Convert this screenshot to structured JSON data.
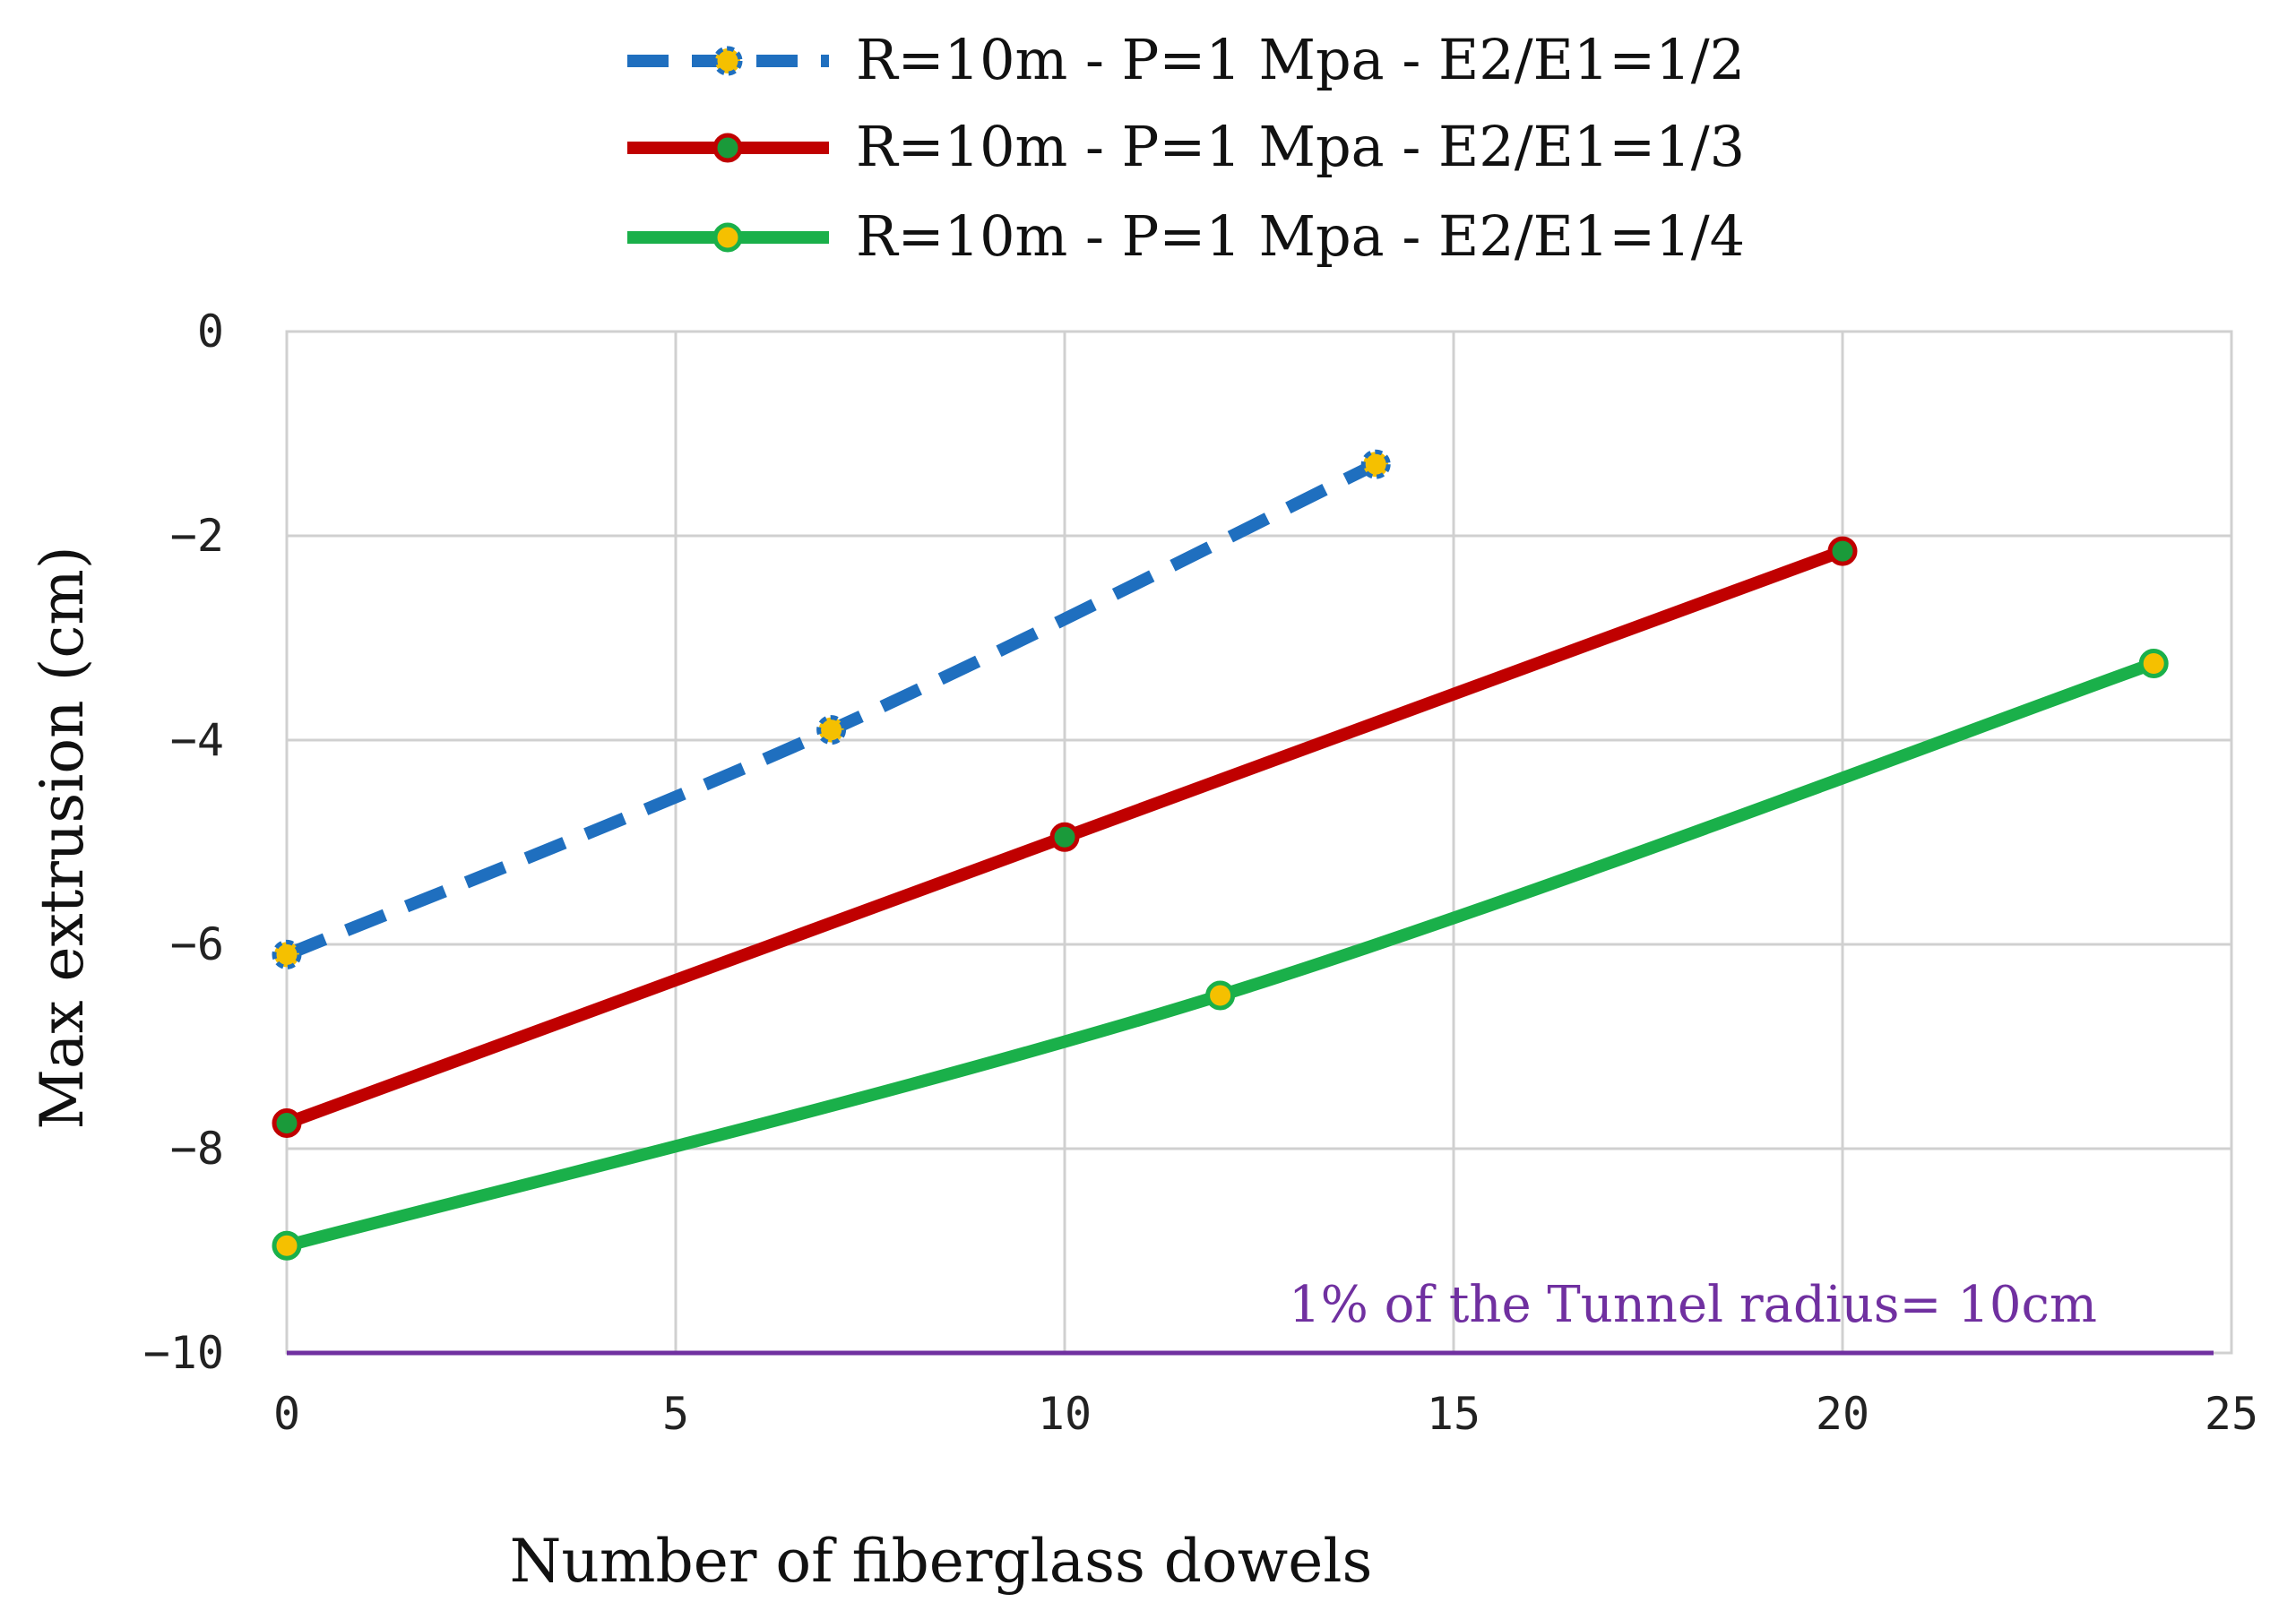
{
  "chart_data": {
    "type": "line",
    "xlabel": "Number of fiberglass dowels",
    "ylabel": "Max extrusion (cm)",
    "xlim": [
      0,
      25
    ],
    "ylim": [
      -10,
      0
    ],
    "x_ticks": [
      "0",
      "5",
      "10",
      "15",
      "20",
      "25"
    ],
    "y_ticks": [
      "0",
      "−2",
      "−4",
      "−6",
      "−8",
      "−10"
    ],
    "grid": true,
    "legend_position": "top",
    "series": [
      {
        "name": "R=10m - P=1 Mpa - E2/E1=1/2",
        "x": [
          0,
          7,
          14
        ],
        "y": [
          -6.1,
          -3.9,
          -1.3
        ],
        "line_color": "#1f6fbf",
        "line_style": "dashed",
        "marker_fill": "#f5c000",
        "marker_edge": "#1f6fbf"
      },
      {
        "name": "R=10m - P=1 Mpa - E2/E1=1/3",
        "x": [
          0,
          10,
          20
        ],
        "y": [
          -7.75,
          -4.95,
          -2.15
        ],
        "line_color": "#c00000",
        "line_style": "solid",
        "marker_fill": "#1a9a3a",
        "marker_edge": "#c00000"
      },
      {
        "name": "R=10m - P=1 Mpa - E2/E1=1/4",
        "x": [
          0,
          12,
          24
        ],
        "y": [
          -8.95,
          -6.5,
          -3.25
        ],
        "line_color": "#1ab04a",
        "line_style": "solid",
        "marker_fill": "#f5c000",
        "marker_edge": "#1ab04a"
      }
    ],
    "reference_line": {
      "y": -10,
      "label": "1% of the Tunnel radius= 10cm",
      "color": "#7030a0"
    }
  }
}
